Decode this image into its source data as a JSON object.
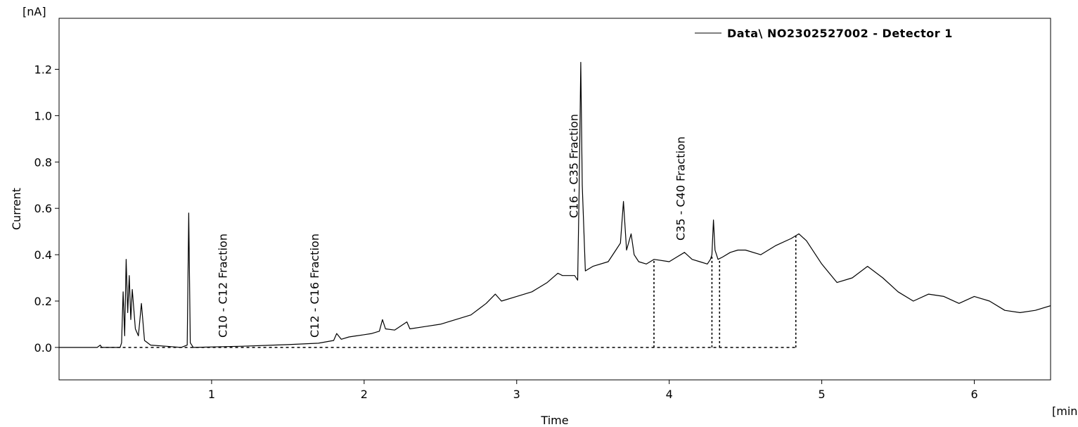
{
  "chart_data": {
    "type": "line",
    "title": "",
    "xlabel": "Time",
    "ylabel": "Current",
    "x_unit": "[min]",
    "y_unit": "[nA]",
    "xlim": [
      0,
      6.5
    ],
    "ylim": [
      -0.14,
      1.42
    ],
    "x_ticks": [
      1,
      2,
      3,
      4,
      5,
      6
    ],
    "x_tick_labels": [
      "1",
      "2",
      "3",
      "4",
      "5",
      "6"
    ],
    "y_ticks": [
      0.0,
      0.2,
      0.4,
      0.6,
      0.8,
      1.0,
      1.2
    ],
    "y_tick_labels": [
      "0.0",
      "0.2",
      "0.4",
      "0.6",
      "0.8",
      "1.0",
      "1.2"
    ],
    "grid": false,
    "legend_position": "top-right",
    "line_color": "#000000",
    "series": [
      {
        "name": "Data\\ NO2302527002 - Detector 1",
        "x": [
          0.0,
          0.25,
          0.27,
          0.28,
          0.3,
          0.31,
          0.4,
          0.41,
          0.42,
          0.43,
          0.44,
          0.45,
          0.46,
          0.47,
          0.48,
          0.5,
          0.52,
          0.54,
          0.56,
          0.6,
          0.7,
          0.8,
          0.84,
          0.85,
          0.86,
          0.88,
          1.0,
          1.2,
          1.5,
          1.7,
          1.8,
          1.82,
          1.85,
          1.9,
          1.95,
          2.0,
          2.05,
          2.1,
          2.12,
          2.14,
          2.2,
          2.28,
          2.3,
          2.4,
          2.5,
          2.6,
          2.7,
          2.76,
          2.8,
          2.86,
          2.9,
          3.0,
          3.1,
          3.2,
          3.27,
          3.3,
          3.38,
          3.4,
          3.41,
          3.42,
          3.43,
          3.45,
          3.5,
          3.6,
          3.65,
          3.68,
          3.7,
          3.72,
          3.75,
          3.77,
          3.8,
          3.85,
          3.9,
          4.0,
          4.05,
          4.1,
          4.15,
          4.2,
          4.25,
          4.27,
          4.28,
          4.29,
          4.3,
          4.32,
          4.35,
          4.4,
          4.45,
          4.5,
          4.6,
          4.7,
          4.8,
          4.85,
          4.9,
          5.0,
          5.1,
          5.2,
          5.3,
          5.4,
          5.5,
          5.6,
          5.7,
          5.8,
          5.9,
          6.0,
          6.1,
          6.2,
          6.3,
          6.4,
          6.5
        ],
        "y": [
          0.0,
          0.0,
          0.01,
          0.0,
          0.0,
          0.0,
          0.0,
          0.02,
          0.24,
          0.05,
          0.38,
          0.15,
          0.31,
          0.12,
          0.25,
          0.08,
          0.05,
          0.19,
          0.03,
          0.01,
          0.005,
          0.0,
          0.01,
          0.58,
          0.02,
          0.0,
          0.002,
          0.005,
          0.012,
          0.018,
          0.03,
          0.06,
          0.035,
          0.045,
          0.05,
          0.055,
          0.06,
          0.07,
          0.12,
          0.08,
          0.075,
          0.11,
          0.08,
          0.09,
          0.1,
          0.12,
          0.14,
          0.17,
          0.19,
          0.23,
          0.2,
          0.22,
          0.24,
          0.28,
          0.32,
          0.31,
          0.31,
          0.29,
          0.7,
          1.23,
          0.7,
          0.33,
          0.35,
          0.37,
          0.42,
          0.45,
          0.63,
          0.42,
          0.49,
          0.4,
          0.37,
          0.36,
          0.38,
          0.37,
          0.39,
          0.41,
          0.38,
          0.37,
          0.36,
          0.38,
          0.4,
          0.55,
          0.42,
          0.38,
          0.39,
          0.41,
          0.42,
          0.42,
          0.4,
          0.44,
          0.47,
          0.49,
          0.46,
          0.36,
          0.28,
          0.3,
          0.35,
          0.3,
          0.24,
          0.2,
          0.23,
          0.22,
          0.19,
          0.22,
          0.2,
          0.16,
          0.15,
          0.16,
          0.18
        ]
      }
    ],
    "annotations": [
      {
        "text": "C10 - C12 Fraction",
        "x": 1.1
      },
      {
        "text": "C12 - C16 Fraction",
        "x": 1.7
      },
      {
        "text": "C16 - C35 Fraction",
        "x": 3.4
      },
      {
        "text": "C35 - C40 Fraction",
        "x": 4.1
      }
    ],
    "integration_baseline": {
      "x_start": 0.27,
      "x_end": 4.83,
      "y": 0.0,
      "drop_lines_x": [
        3.9,
        4.28,
        4.33,
        4.83
      ]
    }
  }
}
